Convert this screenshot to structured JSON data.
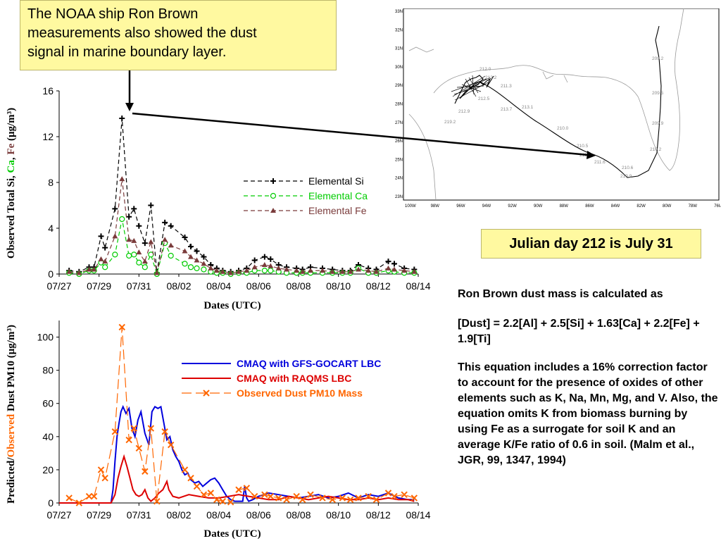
{
  "callout": {
    "line1": "The NOAA ship Ron Brown",
    "line2": "measurements also showed the dust",
    "line3": "signal in marine boundary layer."
  },
  "julian_note": "Julian day 212 is July 31",
  "notes": {
    "p1": "Ron Brown dust mass is calculated as",
    "p2": "[Dust] = 2.2[Al] + 2.5[Si] + 1.63[Ca] + 2.2[Fe] + 1.9[Ti]",
    "p3": "This equation includes a 16% correction factor to account for the presence of oxides of other elements such as K, Na, Mn, Mg, and V. Also, the equation omits K from biomass burning by using Fe as a surrogate for soil K and an average K/Fe ratio of 0.6 in soil.  (Malm et al., JGR, 99, 1347, 1994)"
  },
  "top_ylabel": {
    "p1": "Observed Total Si, ",
    "ca": "Ca",
    "sep": ", ",
    "fe": "Fe",
    "unit": " (μg/m³)"
  },
  "bottom_ylabel": {
    "p1": "Predicted/",
    "obs": "Observed",
    "unit": " Dust PM10 (μg/m³)"
  },
  "map": {
    "lat_labels": [
      "33N",
      "32N",
      "31N",
      "30N",
      "29N",
      "28N",
      "27N",
      "26N",
      "25N",
      "24N",
      "23N"
    ],
    "lon_labels": [
      "100W",
      "98W",
      "96W",
      "94W",
      "92W",
      "90W",
      "88W",
      "86W",
      "84W",
      "82W",
      "80W",
      "78W",
      "76W"
    ],
    "day_labels": [
      "209.2",
      "209.5",
      "209.9",
      "210.0",
      "210.2",
      "210.5",
      "210.6",
      "210.9",
      "211.0",
      "211.3",
      "211.6",
      "212.0",
      "212.2",
      "212.5",
      "212.9",
      "213.1",
      "213.7",
      "219.2"
    ]
  },
  "chart_data": [
    {
      "type": "line",
      "title": "",
      "xlabel": "Dates (UTC)",
      "ylabel": "Observed Total Si, Ca, Fe (μg/m³)",
      "x_tick_labels": [
        "07/27",
        "07/29",
        "07/31",
        "08/02",
        "08/04",
        "08/06",
        "08/08",
        "08/10",
        "08/12",
        "08/14"
      ],
      "x_range_days": [
        0,
        18
      ],
      "ylim": [
        0,
        16
      ],
      "y_ticks": [
        0,
        4,
        8,
        12,
        16
      ],
      "legend_position": "right",
      "series": [
        {
          "name": "Elemental Si",
          "color": "#000000",
          "marker": "plus",
          "x": [
            0.5,
            1.0,
            1.5,
            1.75,
            2.1,
            2.3,
            2.8,
            3.15,
            3.5,
            3.75,
            4.0,
            4.3,
            4.6,
            4.9,
            5.3,
            5.6,
            6.3,
            6.6,
            6.9,
            7.25,
            7.6,
            7.9,
            8.2,
            8.6,
            9.0,
            9.4,
            9.8,
            10.3,
            10.6,
            11.0,
            11.4,
            11.9,
            12.2,
            12.6,
            13.2,
            13.7,
            14.2,
            14.6,
            15.0,
            15.5,
            15.9,
            16.5,
            16.8,
            17.3,
            17.8
          ],
          "y": [
            0.3,
            0.2,
            0.6,
            0.6,
            3.3,
            2.3,
            5.7,
            13.6,
            5.0,
            5.7,
            4.2,
            2.7,
            6.0,
            0.1,
            4.5,
            4.2,
            3.2,
            2.4,
            2.0,
            1.5,
            0.8,
            0.5,
            0.3,
            0.2,
            0.3,
            0.5,
            1.2,
            1.5,
            1.3,
            0.8,
            0.6,
            0.5,
            0.4,
            0.6,
            0.5,
            0.4,
            0.3,
            0.3,
            0.8,
            0.5,
            0.4,
            1.1,
            0.9,
            0.5,
            0.4
          ]
        },
        {
          "name": "Elemental Ca",
          "color": "#00cc00",
          "marker": "circle",
          "x": [
            0.5,
            1.0,
            1.5,
            1.75,
            2.1,
            2.3,
            2.8,
            3.15,
            3.5,
            3.75,
            4.0,
            4.3,
            4.6,
            4.9,
            5.3,
            5.6,
            6.3,
            6.6,
            6.9,
            7.25,
            7.6,
            7.9,
            8.2,
            8.6,
            9.0,
            9.4,
            9.8,
            10.3,
            10.6,
            11.0,
            11.4,
            11.9,
            12.2,
            12.6,
            13.2,
            13.7,
            14.2,
            14.6,
            15.0,
            15.5,
            15.9,
            16.5,
            16.8,
            17.3,
            17.8
          ],
          "y": [
            0.1,
            0.0,
            0.3,
            0.3,
            1.0,
            0.6,
            1.7,
            4.8,
            1.6,
            1.7,
            1.0,
            0.6,
            1.7,
            0.0,
            2.7,
            1.6,
            0.9,
            0.6,
            0.5,
            0.4,
            0.2,
            0.1,
            0.1,
            0.0,
            0.1,
            0.1,
            0.3,
            0.3,
            0.3,
            0.2,
            0.1,
            0.1,
            0.1,
            0.1,
            0.1,
            0.1,
            0.1,
            0.1,
            0.5,
            0.1,
            0.1,
            0.3,
            0.2,
            0.1,
            0.1
          ]
        },
        {
          "name": "Elemental Fe",
          "color": "#7a3b3b",
          "marker": "triangle",
          "x": [
            0.5,
            1.0,
            1.5,
            1.75,
            2.1,
            2.3,
            2.8,
            3.15,
            3.5,
            3.75,
            4.0,
            4.3,
            4.6,
            4.9,
            5.3,
            5.6,
            6.3,
            6.6,
            6.9,
            7.25,
            7.6,
            7.9,
            8.2,
            8.6,
            9.0,
            9.4,
            9.8,
            10.3,
            10.6,
            11.0,
            11.4,
            11.9,
            12.2,
            12.6,
            13.2,
            13.7,
            14.2,
            14.6,
            15.0,
            15.5,
            15.9,
            16.5,
            16.8,
            17.3,
            17.8
          ],
          "y": [
            0.2,
            0.1,
            0.4,
            0.4,
            1.3,
            1.1,
            3.3,
            8.3,
            3.0,
            2.9,
            1.9,
            1.1,
            2.8,
            0.1,
            3.0,
            2.5,
            2.0,
            1.5,
            1.2,
            0.9,
            0.5,
            0.3,
            0.2,
            0.1,
            0.2,
            0.3,
            0.6,
            0.8,
            0.7,
            0.5,
            0.4,
            0.3,
            0.2,
            0.3,
            0.3,
            0.2,
            0.2,
            0.2,
            0.4,
            0.3,
            0.2,
            0.5,
            0.4,
            0.3,
            0.2
          ]
        }
      ]
    },
    {
      "type": "line",
      "title": "",
      "xlabel": "Dates (UTC)",
      "ylabel": "Predicted/Observed Dust PM10 (μg/m³)",
      "x_tick_labels": [
        "07/27",
        "07/29",
        "07/31",
        "08/02",
        "08/04",
        "08/06",
        "08/08",
        "08/10",
        "08/12",
        "08/14"
      ],
      "x_range_days": [
        0,
        18
      ],
      "ylim": [
        0,
        110
      ],
      "y_ticks": [
        0,
        20,
        40,
        60,
        80,
        100
      ],
      "legend_position": "top-right",
      "series": [
        {
          "name": "CMAQ with GFS-GOCART LBC",
          "color": "#0000dd",
          "marker": "none",
          "x": [
            0,
            2.6,
            2.7,
            2.8,
            2.9,
            3.0,
            3.1,
            3.2,
            3.35,
            3.5,
            3.65,
            3.8,
            3.95,
            4.1,
            4.3,
            4.5,
            4.65,
            4.8,
            4.95,
            5.1,
            5.25,
            5.4,
            5.55,
            5.7,
            5.85,
            6.0,
            6.15,
            6.3,
            6.45,
            6.6,
            6.8,
            7.0,
            7.2,
            7.4,
            7.6,
            7.8,
            8.0,
            8.2,
            8.4,
            8.6,
            8.8,
            9.0,
            9.2,
            9.3,
            9.4,
            9.5,
            9.7,
            10.0,
            10.5,
            11.0,
            11.5,
            12.0,
            12.5,
            13.0,
            13.5,
            14.0,
            14.5,
            15.0,
            15.5,
            16.0,
            16.5,
            17.0,
            17.5,
            17.8
          ],
          "y": [
            0,
            0,
            8,
            25,
            40,
            48,
            55,
            58,
            54,
            57,
            45,
            40,
            50,
            55,
            42,
            35,
            55,
            58,
            57,
            58,
            48,
            38,
            40,
            32,
            28,
            25,
            20,
            17,
            18,
            14,
            12,
            13,
            10,
            12,
            14,
            15,
            12,
            8,
            4,
            2,
            1,
            1,
            1,
            10,
            3,
            1,
            2,
            4,
            6,
            5,
            4,
            3,
            4,
            5,
            3,
            4,
            6,
            3,
            5,
            4,
            6,
            3,
            2,
            2
          ]
        },
        {
          "name": "CMAQ with RAQMS LBC",
          "color": "#dd0000",
          "marker": "none",
          "x": [
            0,
            2.6,
            2.8,
            2.95,
            3.1,
            3.25,
            3.4,
            3.55,
            3.7,
            3.85,
            4.0,
            4.15,
            4.3,
            4.45,
            4.6,
            4.8,
            5.0,
            5.2,
            5.4,
            5.5,
            5.7,
            6.0,
            6.5,
            7.0,
            7.5,
            8.0,
            8.5,
            9.0,
            9.5,
            10.0,
            10.5,
            11.0,
            11.5,
            12.0,
            12.5,
            13.0,
            13.5,
            14.0,
            14.5,
            15.0,
            15.5,
            16.0,
            16.5,
            17.0,
            17.5,
            17.8
          ],
          "y": [
            0,
            0,
            5,
            15,
            22,
            28,
            22,
            15,
            8,
            5,
            4,
            5,
            8,
            3,
            1,
            3,
            6,
            8,
            13,
            8,
            4,
            3,
            5,
            4,
            3,
            3,
            4,
            5,
            4,
            3,
            2,
            2,
            4,
            3,
            2,
            3,
            4,
            3,
            2,
            2,
            3,
            2,
            3,
            2,
            2,
            1
          ]
        },
        {
          "name": "Observed Dust PM10 Mass",
          "color": "#ff6600",
          "marker": "x",
          "x": [
            0.5,
            1.0,
            1.5,
            1.75,
            2.1,
            2.3,
            2.8,
            3.15,
            3.5,
            3.75,
            4.0,
            4.3,
            4.6,
            4.9,
            5.3,
            5.6,
            6.3,
            6.6,
            6.9,
            7.25,
            7.6,
            7.9,
            8.2,
            8.6,
            9.0,
            9.4,
            9.8,
            10.3,
            10.6,
            11.0,
            11.4,
            11.9,
            12.2,
            12.6,
            13.2,
            13.7,
            14.2,
            14.6,
            15.0,
            15.5,
            15.9,
            16.5,
            16.8,
            17.3,
            17.8
          ],
          "y": [
            3,
            0,
            4,
            4,
            20,
            15,
            43,
            106,
            38,
            45,
            33,
            19,
            45,
            1,
            43,
            35,
            20,
            15,
            10,
            5,
            6,
            2,
            1,
            0.5,
            8,
            9,
            4,
            5,
            4,
            3,
            2,
            4,
            2,
            5,
            3,
            2,
            3,
            2,
            3,
            4,
            2,
            6,
            4,
            5,
            3
          ]
        }
      ]
    }
  ]
}
